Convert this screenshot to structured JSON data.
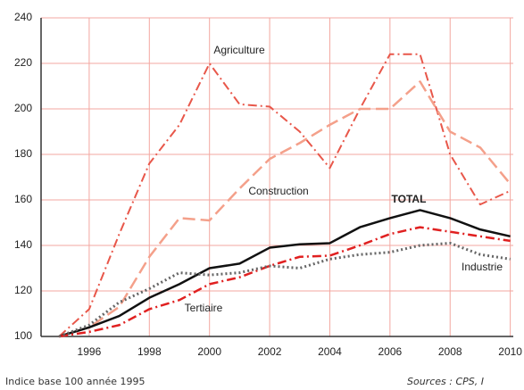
{
  "chart_data": {
    "type": "line",
    "x": [
      1995,
      1996,
      1997,
      1998,
      1999,
      2000,
      2001,
      2002,
      2003,
      2004,
      2005,
      2006,
      2007,
      2008,
      2009,
      2010
    ],
    "series": [
      {
        "name": "Agriculture",
        "color": "#e8574a",
        "style": "dash-dot",
        "width": 2,
        "values": [
          100,
          112,
          145,
          176,
          193,
          220,
          202,
          201,
          190,
          174,
          200,
          224,
          224,
          180,
          158,
          164
        ]
      },
      {
        "name": "Construction",
        "color": "#f4a08a",
        "style": "dash",
        "width": 2.5,
        "values": [
          100,
          104,
          113,
          135,
          152,
          151,
          165,
          178,
          185,
          193,
          200,
          200,
          212,
          190,
          183,
          167
        ]
      },
      {
        "name": "TOTAL",
        "color": "#111111",
        "style": "solid",
        "width": 2.5,
        "values": [
          100,
          104,
          109,
          117,
          123,
          130,
          132,
          139,
          140.5,
          141,
          148,
          152,
          155.5,
          152,
          147,
          144
        ]
      },
      {
        "name": "Tertiaire",
        "color": "#e02020",
        "style": "dash-dot",
        "width": 2.5,
        "values": [
          100,
          102,
          105,
          112,
          116,
          123,
          126,
          131,
          135,
          135.5,
          140,
          145,
          148,
          146,
          144,
          142
        ]
      },
      {
        "name": "Industrie",
        "color": "#666666",
        "style": "dot",
        "width": 3,
        "values": [
          100,
          105,
          115,
          121,
          128,
          127,
          128,
          131,
          130,
          134,
          136,
          137,
          140,
          141,
          136,
          134
        ]
      }
    ],
    "xlim": [
      1994.4,
      2010.1
    ],
    "xticks": [
      1996,
      1998,
      2000,
      2002,
      2004,
      2006,
      2008,
      2010
    ],
    "ylim": [
      100,
      240
    ],
    "yticks": [
      100,
      120,
      140,
      160,
      180,
      200,
      220,
      240
    ],
    "grid": true,
    "footnote": "Indice base 100 année 1995",
    "source": "Sources : CPS, I"
  }
}
